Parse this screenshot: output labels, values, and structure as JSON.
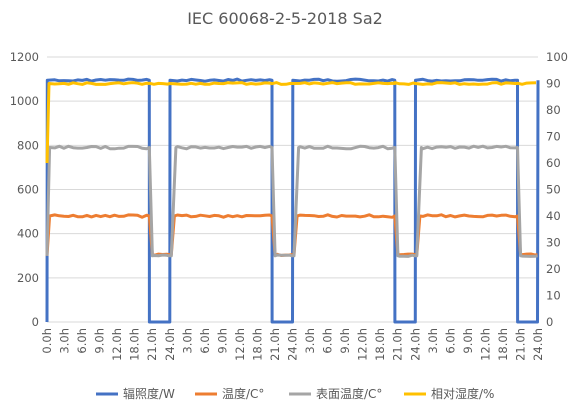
{
  "chart_data": {
    "type": "line",
    "title": "IEC 60068-2-5-2018 Sa2",
    "x_tick_labels": [
      "0.0h",
      "3.0h",
      "6.0h",
      "9.0h",
      "12.0h",
      "18.0h",
      "21.0h",
      "24.0h",
      "3.0h",
      "6.0h",
      "9.0h",
      "12.0h",
      "18.0h",
      "21.0h",
      "24.0h",
      "3.0h",
      "6.0h",
      "9.0h",
      "12.0h",
      "18.0h",
      "21.0h",
      "24.0h",
      "3.0h",
      "6.0h",
      "9.0h",
      "12.0h",
      "18.0h",
      "21.0h",
      "24.0h"
    ],
    "y_left": {
      "min": 0,
      "max": 1200,
      "ticks": [
        0,
        200,
        400,
        600,
        800,
        1000,
        1200
      ]
    },
    "y_right": {
      "min": 0,
      "max": 100,
      "ticks": [
        0,
        10,
        20,
        30,
        40,
        50,
        60,
        70,
        80,
        90,
        100
      ]
    },
    "grid": true,
    "legend_position": "bottom",
    "cycles": 4,
    "cycle_phases": {
      "day_hours": [
        0,
        20
      ],
      "night_hours": [
        20,
        24
      ]
    },
    "series": [
      {
        "name": "辐照度/W",
        "axis": "left",
        "color": "#4472c4",
        "day_value": 1095,
        "night_value": 0
      },
      {
        "name": "温度/C°",
        "axis": "left",
        "color": "#ed7d31",
        "day_value": 480,
        "night_value": 305
      },
      {
        "name": "表面温度/C°",
        "axis": "left",
        "color": "#a5a5a5",
        "day_value": 790,
        "night_value": 300
      },
      {
        "name": "相对湿度/%",
        "axis": "right",
        "color": "#ffc000",
        "day_value": 90,
        "night_value": 90
      }
    ]
  }
}
